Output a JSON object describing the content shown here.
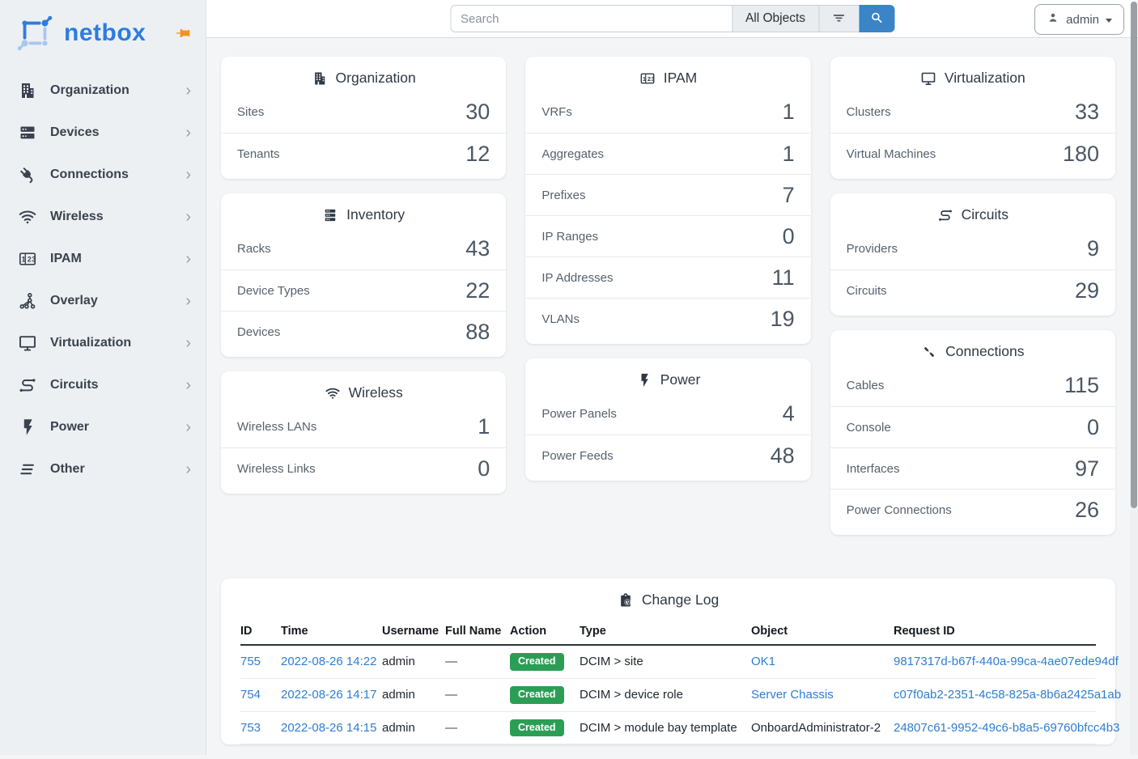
{
  "brand": {
    "name": "netbox"
  },
  "topbar": {
    "search": {
      "placeholder": "Search",
      "value": "",
      "scope": "All Objects"
    },
    "user": {
      "label": "admin"
    }
  },
  "sidebar": {
    "items": [
      {
        "label": "Organization",
        "icon": "building-icon"
      },
      {
        "label": "Devices",
        "icon": "server-icon"
      },
      {
        "label": "Connections",
        "icon": "plug-icon"
      },
      {
        "label": "Wireless",
        "icon": "wifi-icon"
      },
      {
        "label": "IPAM",
        "icon": "counter-icon"
      },
      {
        "label": "Overlay",
        "icon": "graph-icon"
      },
      {
        "label": "Virtualization",
        "icon": "monitor-icon"
      },
      {
        "label": "Circuits",
        "icon": "transit-icon"
      },
      {
        "label": "Power",
        "icon": "flash-icon"
      },
      {
        "label": "Other",
        "icon": "menu-skew-icon"
      }
    ]
  },
  "columns": [
    [
      {
        "title": "Organization",
        "icon": "building-icon",
        "rows": [
          {
            "label": "Sites",
            "value": "30"
          },
          {
            "label": "Tenants",
            "value": "12"
          }
        ]
      },
      {
        "title": "Inventory",
        "icon": "rack-icon",
        "rows": [
          {
            "label": "Racks",
            "value": "43"
          },
          {
            "label": "Device Types",
            "value": "22"
          },
          {
            "label": "Devices",
            "value": "88"
          }
        ]
      },
      {
        "title": "Wireless",
        "icon": "wifi-icon",
        "rows": [
          {
            "label": "Wireless LANs",
            "value": "1"
          },
          {
            "label": "Wireless Links",
            "value": "0"
          }
        ]
      }
    ],
    [
      {
        "title": "IPAM",
        "icon": "counter-icon",
        "rows": [
          {
            "label": "VRFs",
            "value": "1"
          },
          {
            "label": "Aggregates",
            "value": "1"
          },
          {
            "label": "Prefixes",
            "value": "7"
          },
          {
            "label": "IP Ranges",
            "value": "0"
          },
          {
            "label": "IP Addresses",
            "value": "11"
          },
          {
            "label": "VLANs",
            "value": "19"
          }
        ]
      },
      {
        "title": "Power",
        "icon": "flash-icon",
        "rows": [
          {
            "label": "Power Panels",
            "value": "4"
          },
          {
            "label": "Power Feeds",
            "value": "48"
          }
        ]
      }
    ],
    [
      {
        "title": "Virtualization",
        "icon": "monitor-icon",
        "rows": [
          {
            "label": "Clusters",
            "value": "33"
          },
          {
            "label": "Virtual Machines",
            "value": "180"
          }
        ]
      },
      {
        "title": "Circuits",
        "icon": "transit-icon",
        "rows": [
          {
            "label": "Providers",
            "value": "9"
          },
          {
            "label": "Circuits",
            "value": "29"
          }
        ]
      },
      {
        "title": "Connections",
        "icon": "cable-icon",
        "rows": [
          {
            "label": "Cables",
            "value": "115"
          },
          {
            "label": "Console",
            "value": "0"
          },
          {
            "label": "Interfaces",
            "value": "97"
          },
          {
            "label": "Power Connections",
            "value": "26"
          }
        ]
      }
    ]
  ],
  "changelog": {
    "title": "Change Log",
    "icon": "clipboard-clock-icon",
    "columns": [
      "ID",
      "Time",
      "Username",
      "Full Name",
      "Action",
      "Type",
      "Object",
      "Request ID"
    ],
    "rows": [
      {
        "id": "755",
        "time": "2022-08-26 14:22",
        "username": "admin",
        "full_name": "—",
        "action": "Created",
        "type": "DCIM > site",
        "object": "OK1",
        "object_is_link": true,
        "request_id": "9817317d-b67f-440a-99ca-4ae07ede94df"
      },
      {
        "id": "754",
        "time": "2022-08-26 14:17",
        "username": "admin",
        "full_name": "—",
        "action": "Created",
        "type": "DCIM > device role",
        "object": "Server Chassis",
        "object_is_link": true,
        "request_id": "c07f0ab2-2351-4c58-825a-8b6a2425a1ab"
      },
      {
        "id": "753",
        "time": "2022-08-26 14:15",
        "username": "admin",
        "full_name": "—",
        "action": "Created",
        "type": "DCIM > module bay template",
        "object": "OnboardAdministrator-2",
        "object_is_link": false,
        "request_id": "24807c61-9952-49c6-b8a5-69760bfcc4b3"
      }
    ]
  },
  "colors": {
    "brand_blue": "#2e7ce0",
    "accent_button": "#3a84c7",
    "link": "#2e7dd3",
    "badge_created_green": "#2b9e56",
    "pin_orange": "#f5921e"
  }
}
